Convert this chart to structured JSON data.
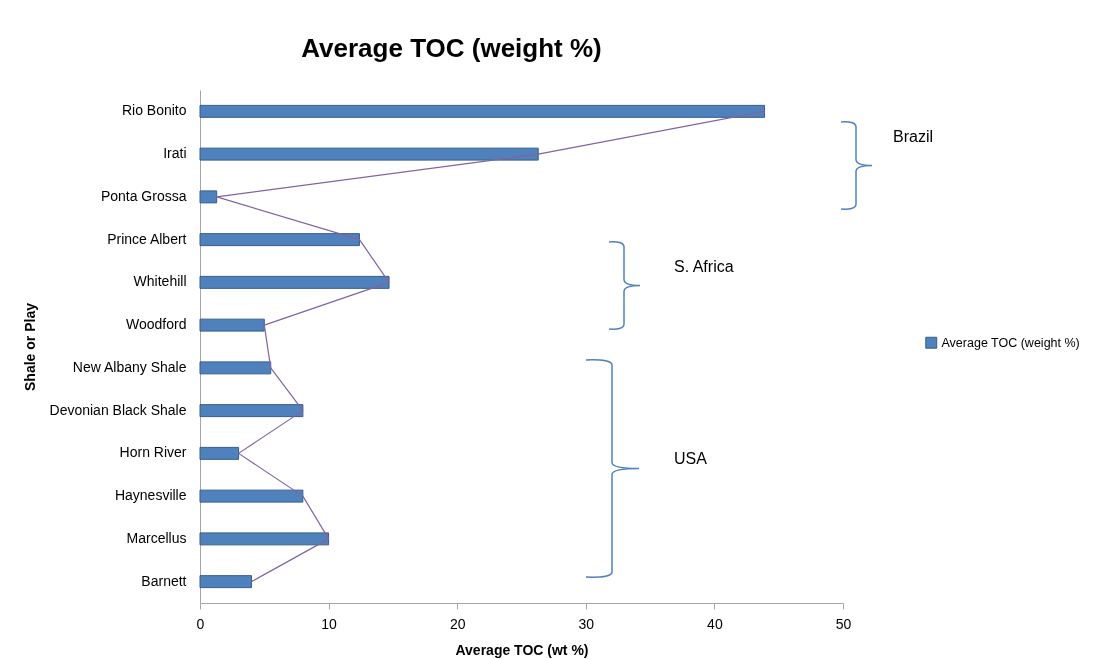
{
  "chart_data": {
    "type": "bar",
    "orientation": "horizontal",
    "title": "Average TOC (weight %)",
    "xlabel": "Average TOC (wt %)",
    "ylabel": "Shale or Play",
    "categories": [
      "Rio Bonito",
      "Irati",
      "Ponta Grossa",
      "Prince Albert",
      "Whitehill",
      "Woodford",
      "New Albany Shale",
      "Devonian Black Shale",
      "Horn River",
      "Haynesville",
      "Marcellus",
      "Barnett"
    ],
    "series": [
      {
        "name": "Average TOC (weight %)",
        "color": "#4f81bd",
        "values": [
          43.9,
          26.3,
          1.3,
          12.4,
          14.7,
          5.0,
          5.5,
          8.0,
          3.0,
          8.0,
          10.0,
          4.0
        ]
      },
      {
        "type": "line",
        "color": "#8064a2",
        "values": [
          43.9,
          26.3,
          1.3,
          12.4,
          14.7,
          5.0,
          5.5,
          8.0,
          3.0,
          8.0,
          10.0,
          4.0
        ]
      }
    ],
    "xlim": [
      0,
      50
    ],
    "xticks": [
      0,
      10,
      20,
      30,
      40,
      50
    ],
    "grid": false,
    "legend": "right",
    "marker": "none",
    "annotations": [
      "Brazil",
      "S. Africa",
      "USA"
    ]
  }
}
